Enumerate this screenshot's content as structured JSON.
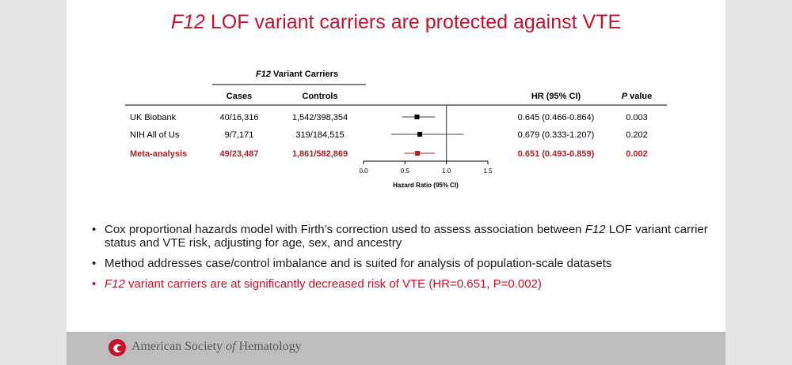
{
  "slide": {
    "title_gene": "F12",
    "title_rest": " LOF variant carriers are protected against VTE",
    "accent_color": "#c8102e",
    "bullets": [
      {
        "gene": "",
        "text": "Cox proportional hazards model with Firth’s correction used to assess association between ",
        "gene_end": "F12",
        "text_end": " LOF variant carrier status and VTE risk, adjusting for age, sex, and ancestry",
        "highlight": false
      },
      {
        "gene": "",
        "text": "Method addresses case/control imbalance and is suited for analysis of population-scale datasets",
        "gene_end": "",
        "text_end": "",
        "highlight": false
      },
      {
        "gene": "F12",
        "text": " variant carriers are at significantly decreased risk of VTE (HR=0.651, P=0.002)",
        "gene_end": "",
        "text_end": "",
        "highlight": true
      }
    ]
  },
  "footer": {
    "org_before": "American Society ",
    "org_of": "of",
    "org_after": " Hematology",
    "logo_icon": "ash-logo-icon"
  },
  "chart_data": {
    "type": "forest",
    "group_header_gene": "F12",
    "group_header_rest": " Variant Carriers",
    "columns": {
      "cases": "Cases",
      "controls": "Controls",
      "hr": "HR (95% CI)",
      "p_italic": "P",
      "p_rest": " value"
    },
    "rows": [
      {
        "study": "UK Biobank",
        "cases": "40/16,316",
        "controls": "1,542/398,354",
        "hr": 0.645,
        "lo": 0.466,
        "hi": 0.864,
        "hr_text": "0.645 (0.466-0.864)",
        "p": "0.003",
        "meta": false
      },
      {
        "study": "NIH All of Us",
        "cases": "9/7,171",
        "controls": "319/184,515",
        "hr": 0.679,
        "lo": 0.333,
        "hi": 1.207,
        "hr_text": "0.679 (0.333-1.207)",
        "p": "0.202",
        "meta": false
      },
      {
        "study": "Meta-analysis",
        "cases": "49/23,487",
        "controls": "1,861/582,869",
        "hr": 0.651,
        "lo": 0.493,
        "hi": 0.859,
        "hr_text": "0.651 (0.493-0.859)",
        "p": "0.002",
        "meta": true
      }
    ],
    "xlim": [
      0,
      1.5
    ],
    "xticks": [
      "0.0",
      "0.5",
      "1.0",
      "1.5"
    ],
    "reference_line": 1.0,
    "xlabel": "Hazard Ratio (95% CI)",
    "colors": {
      "study": "#000000",
      "meta": "#b22222",
      "ci_line": "#444444"
    }
  }
}
